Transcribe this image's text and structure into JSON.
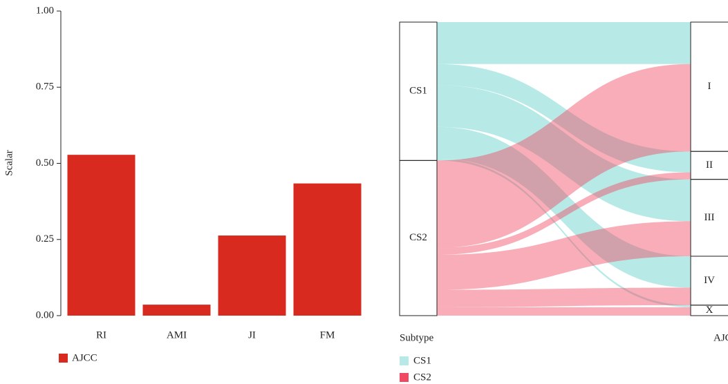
{
  "chart_data": [
    {
      "type": "bar",
      "ylabel": "Scalar",
      "categories": [
        "RI",
        "AMI",
        "JI",
        "FM"
      ],
      "series": [
        {
          "name": "AJCC",
          "color": "#d82a1f",
          "values": [
            0.528,
            0.036,
            0.263,
            0.434
          ]
        }
      ],
      "ylim": [
        0,
        1
      ],
      "yticks": [
        {
          "value": 0,
          "label": "0.00"
        },
        {
          "value": 0.25,
          "label": "0.25"
        },
        {
          "value": 0.5,
          "label": "0.50"
        },
        {
          "value": 0.75,
          "label": "0.75"
        },
        {
          "value": 1,
          "label": "1.00"
        }
      ]
    },
    {
      "type": "alluvial",
      "axis_labels": [
        "Subtype",
        "AJCC"
      ],
      "targets": [
        "I",
        "II",
        "III",
        "IV",
        "X"
      ],
      "series": [
        {
          "name": "CS1",
          "color": "#5fd0c8",
          "values": [
            60,
            30,
            60,
            45,
            3
          ]
        },
        {
          "name": "CS2",
          "color": "#ef4a62",
          "values": [
            125,
            10,
            50,
            25,
            12
          ]
        }
      ]
    }
  ]
}
